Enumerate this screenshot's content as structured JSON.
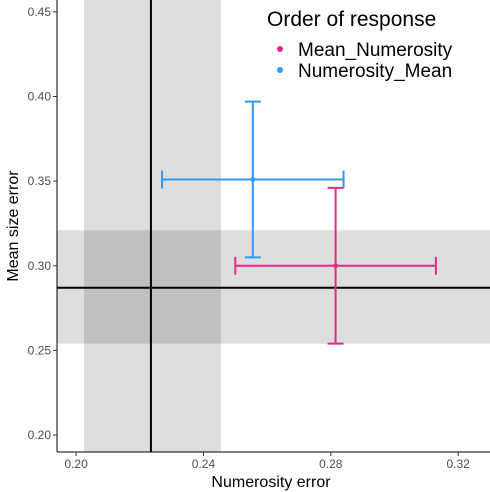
{
  "chart_data": {
    "type": "scatter",
    "title": "",
    "xlabel": "Numerosity error",
    "ylabel": "Mean size error",
    "xlim": [
      0.194,
      0.33
    ],
    "ylim": [
      0.19,
      0.457
    ],
    "x_ticks": [
      0.2,
      0.24,
      0.28,
      0.32
    ],
    "x_tick_labels": [
      "0.20",
      "0.24",
      "0.28",
      "0.32"
    ],
    "y_ticks": [
      0.2,
      0.25,
      0.3,
      0.35,
      0.4,
      0.45
    ],
    "y_tick_labels": [
      "0.20",
      "0.25",
      "0.30",
      "0.35",
      "0.40",
      "0.45"
    ],
    "grid": false,
    "legend": {
      "title": "Order of response",
      "position": "top-right"
    },
    "reference": {
      "vertical_line_x": 0.2235,
      "vertical_band_x": [
        0.2025,
        0.2455
      ],
      "horizontal_line_y": 0.287,
      "horizontal_band_y": [
        0.254,
        0.321
      ]
    },
    "series": [
      {
        "name": "Mean_Numerosity",
        "color": "#e7298a",
        "x": 0.2815,
        "y": 0.3,
        "x_err": [
          0.25,
          0.313
        ],
        "y_err": [
          0.254,
          0.346
        ]
      },
      {
        "name": "Numerosity_Mean",
        "color": "#3399ee",
        "x": 0.2555,
        "y": 0.351,
        "x_err": [
          0.227,
          0.284
        ],
        "y_err": [
          0.305,
          0.397
        ]
      }
    ]
  }
}
